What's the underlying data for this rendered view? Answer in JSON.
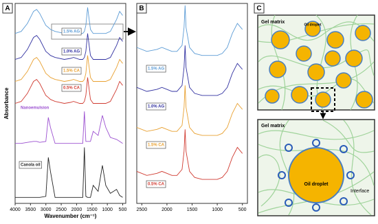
{
  "chart_data": [
    {
      "type": "line",
      "panel": "A",
      "xlabel": "Wavenumber (cm⁻¹)",
      "ylabel": "Absorbance",
      "xlim": [
        4000,
        400
      ],
      "xticks": [
        4000,
        3500,
        3000,
        2500,
        2000,
        1500,
        1000,
        500
      ],
      "ylim": [
        0,
        10
      ],
      "x": [
        4000,
        3800,
        3600,
        3400,
        3300,
        3200,
        3000,
        2920,
        2850,
        2700,
        2400,
        2200,
        2100,
        1900,
        1800,
        1745,
        1700,
        1640,
        1550,
        1460,
        1300,
        1160,
        1050,
        900,
        700,
        600,
        500
      ],
      "series": [
        {
          "name": "1.5% AG",
          "color": "#5b9bd5",
          "values": [
            8.5,
            8.6,
            9.0,
            9.6,
            9.7,
            9.5,
            8.9,
            8.8,
            8.7,
            8.6,
            8.5,
            8.55,
            8.6,
            8.5,
            8.5,
            8.6,
            8.9,
            9.8,
            8.7,
            8.5,
            8.5,
            8.5,
            8.5,
            8.6,
            9.2,
            9.6,
            9.4
          ]
        },
        {
          "name": "1.0% AG",
          "color": "#3030a0",
          "values": [
            7.2,
            7.3,
            7.7,
            8.3,
            8.4,
            8.2,
            7.6,
            7.5,
            7.4,
            7.3,
            7.2,
            7.25,
            7.3,
            7.2,
            7.2,
            7.3,
            7.6,
            8.5,
            7.4,
            7.2,
            7.2,
            7.2,
            7.2,
            7.3,
            7.9,
            8.3,
            8.1
          ]
        },
        {
          "name": "1.5% CA",
          "color": "#e8a030",
          "values": [
            6.1,
            6.2,
            6.6,
            7.2,
            7.3,
            7.1,
            6.5,
            6.4,
            6.3,
            6.2,
            6.1,
            6.15,
            6.2,
            6.1,
            6.1,
            6.2,
            6.5,
            7.4,
            6.3,
            6.1,
            6.1,
            6.1,
            6.1,
            6.2,
            6.8,
            7.2,
            7.0
          ]
        },
        {
          "name": "0.5% CA",
          "color": "#d03a30",
          "values": [
            5.0,
            5.1,
            5.5,
            6.1,
            6.2,
            6.0,
            5.4,
            5.3,
            5.2,
            5.1,
            5.0,
            5.05,
            5.1,
            5.0,
            5.0,
            5.1,
            5.4,
            6.3,
            5.2,
            5.0,
            5.0,
            5.0,
            5.0,
            5.1,
            5.7,
            6.1,
            5.9
          ]
        },
        {
          "name": "Nanoemulsion",
          "color": "#9b4fd0",
          "values": [
            3.0,
            3.0,
            3.05,
            3.1,
            3.1,
            3.05,
            3.1,
            4.3,
            3.8,
            3.0,
            3.0,
            3.0,
            3.0,
            3.0,
            3.0,
            4.6,
            3.1,
            3.1,
            3.1,
            3.6,
            3.4,
            4.4,
            3.8,
            3.3,
            3.2,
            3.1,
            3.0
          ]
        },
        {
          "name": "Canola oil",
          "color": "#222222",
          "values": [
            0.3,
            0.3,
            0.3,
            0.3,
            0.3,
            0.3,
            0.35,
            2.3,
            1.6,
            0.3,
            0.3,
            0.3,
            0.3,
            0.3,
            0.3,
            2.8,
            0.35,
            0.3,
            0.3,
            0.9,
            0.6,
            1.9,
            0.9,
            0.5,
            0.7,
            0.4,
            0.3
          ]
        }
      ]
    },
    {
      "type": "line",
      "panel": "B",
      "xlim": [
        2600,
        400
      ],
      "xticks": [
        2500,
        2000,
        1500,
        1000,
        500
      ],
      "ylim": [
        0,
        10
      ],
      "x": [
        2600,
        2400,
        2200,
        2100,
        2000,
        1900,
        1800,
        1700,
        1660,
        1640,
        1620,
        1550,
        1450,
        1300,
        1200,
        1100,
        1000,
        900,
        800,
        700,
        600,
        500
      ],
      "series": [
        {
          "name": "1.5% AG",
          "color": "#5b9bd5",
          "values": [
            7.8,
            7.6,
            7.7,
            7.8,
            7.7,
            7.6,
            7.6,
            7.9,
            8.8,
            9.9,
            8.8,
            7.8,
            7.5,
            7.4,
            7.4,
            7.4,
            7.4,
            7.5,
            7.8,
            8.5,
            9.0,
            8.7
          ]
        },
        {
          "name": "1.0% AG",
          "color": "#3030a0",
          "values": [
            5.8,
            5.6,
            5.7,
            5.8,
            5.7,
            5.6,
            5.6,
            5.9,
            6.8,
            7.9,
            6.8,
            5.8,
            5.5,
            5.4,
            5.4,
            5.4,
            5.4,
            5.5,
            5.8,
            6.5,
            7.0,
            6.7
          ]
        },
        {
          "name": "1.5% CA",
          "color": "#e8a030",
          "values": [
            3.8,
            3.6,
            3.7,
            3.8,
            3.7,
            3.6,
            3.6,
            3.9,
            4.8,
            5.9,
            4.8,
            3.8,
            3.5,
            3.4,
            3.4,
            3.4,
            3.4,
            3.5,
            3.8,
            4.5,
            5.0,
            4.7
          ]
        },
        {
          "name": "0.5% CA",
          "color": "#d03a30",
          "values": [
            1.6,
            1.4,
            1.5,
            1.6,
            1.5,
            1.4,
            1.4,
            1.7,
            2.6,
            3.7,
            2.6,
            1.6,
            1.3,
            1.2,
            1.2,
            1.2,
            1.2,
            1.3,
            1.6,
            2.3,
            2.8,
            2.5
          ]
        }
      ]
    }
  ],
  "diagram": {
    "panel": "C",
    "top_matrix": "Gel matrix",
    "top_droplet": "Oil droplet",
    "bottom_matrix": "Gel matrix",
    "bottom_droplet": "Oil droplet",
    "interface": "Interface"
  }
}
